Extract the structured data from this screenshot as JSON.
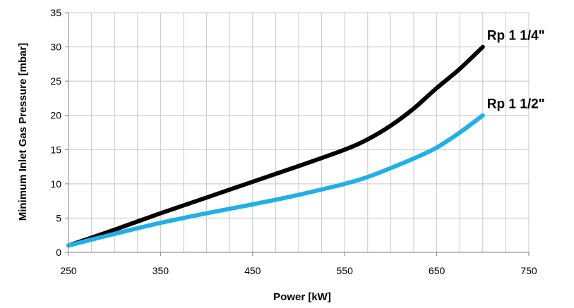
{
  "chart_data": {
    "type": "line",
    "xlabel": "Power  [kW]",
    "ylabel": "Minimum Inlet Gas Pressure [mbar]",
    "xlim": [
      250,
      750
    ],
    "ylim": [
      0,
      35
    ],
    "x_ticks": [
      250,
      350,
      450,
      550,
      650,
      750
    ],
    "y_ticks": [
      0,
      5,
      10,
      15,
      20,
      25,
      30,
      35
    ],
    "x_minor_step": 25,
    "grid": true,
    "legend": "none",
    "series": [
      {
        "name": "Rp 1 1/4\"",
        "color": "#000000",
        "x": [
          250,
          300,
          350,
          400,
          450,
          500,
          550,
          575,
          600,
          625,
          650,
          675,
          700
        ],
        "y": [
          1.0,
          3.3,
          5.7,
          8.0,
          10.3,
          12.6,
          15.0,
          16.5,
          18.5,
          21.0,
          24.0,
          26.8,
          30.0
        ]
      },
      {
        "name": "Rp 1 1/2\"",
        "color": "#1fb0e8",
        "x": [
          250,
          300,
          350,
          400,
          450,
          500,
          550,
          575,
          600,
          625,
          650,
          675,
          700
        ],
        "y": [
          1.0,
          2.7,
          4.3,
          5.7,
          7.0,
          8.4,
          10.0,
          11.0,
          12.3,
          13.7,
          15.3,
          17.5,
          20.0
        ]
      }
    ]
  }
}
